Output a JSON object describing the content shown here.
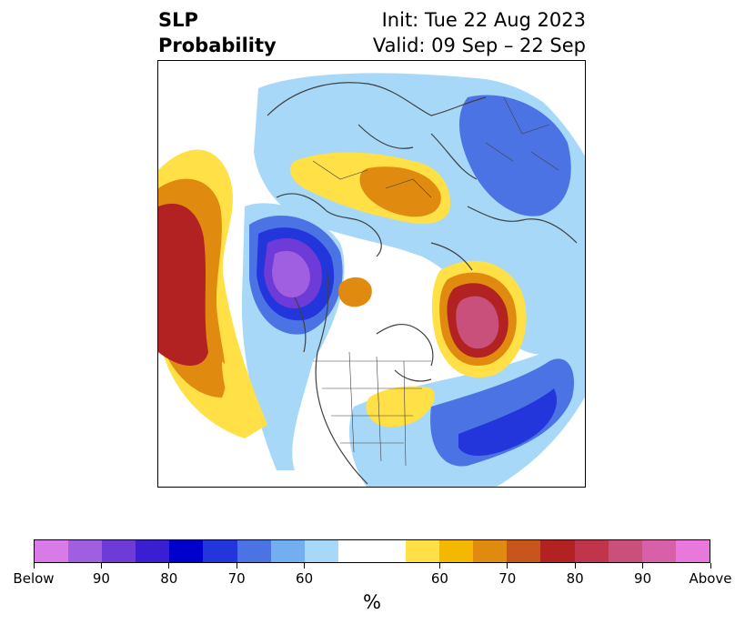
{
  "title": {
    "line1": "SLP",
    "line2": "Probability",
    "init": "Init: Tue 22 Aug 2023",
    "valid": "Valid: 09 Sep – 22 Sep"
  },
  "colorbar": {
    "unit": "%",
    "colors": [
      "#d87ae8",
      "#a05ee0",
      "#6e3ad8",
      "#3a1ed2",
      "#0000cc",
      "#2336dc",
      "#4c73e4",
      "#72aef0",
      "#a8d8f8",
      "#ffffff",
      "#ffffff",
      "#ffe046",
      "#f5b800",
      "#e08a10",
      "#c8561c",
      "#b22222",
      "#c0354c",
      "#c8507a",
      "#d860a8",
      "#e878dc"
    ],
    "tick_labels": [
      "Below",
      "90",
      "80",
      "70",
      "60",
      "60",
      "70",
      "80",
      "90",
      "Above"
    ]
  },
  "colors": {
    "coast": "#404040",
    "below_60": "#a8d8f8",
    "below_70": "#4c73e4",
    "below_80": "#0000cc",
    "below_90": "#6e3ad8",
    "above_60": "#ffe046",
    "above_70": "#e08a10",
    "above_80": "#b22222",
    "above_90": "#d860a8"
  }
}
